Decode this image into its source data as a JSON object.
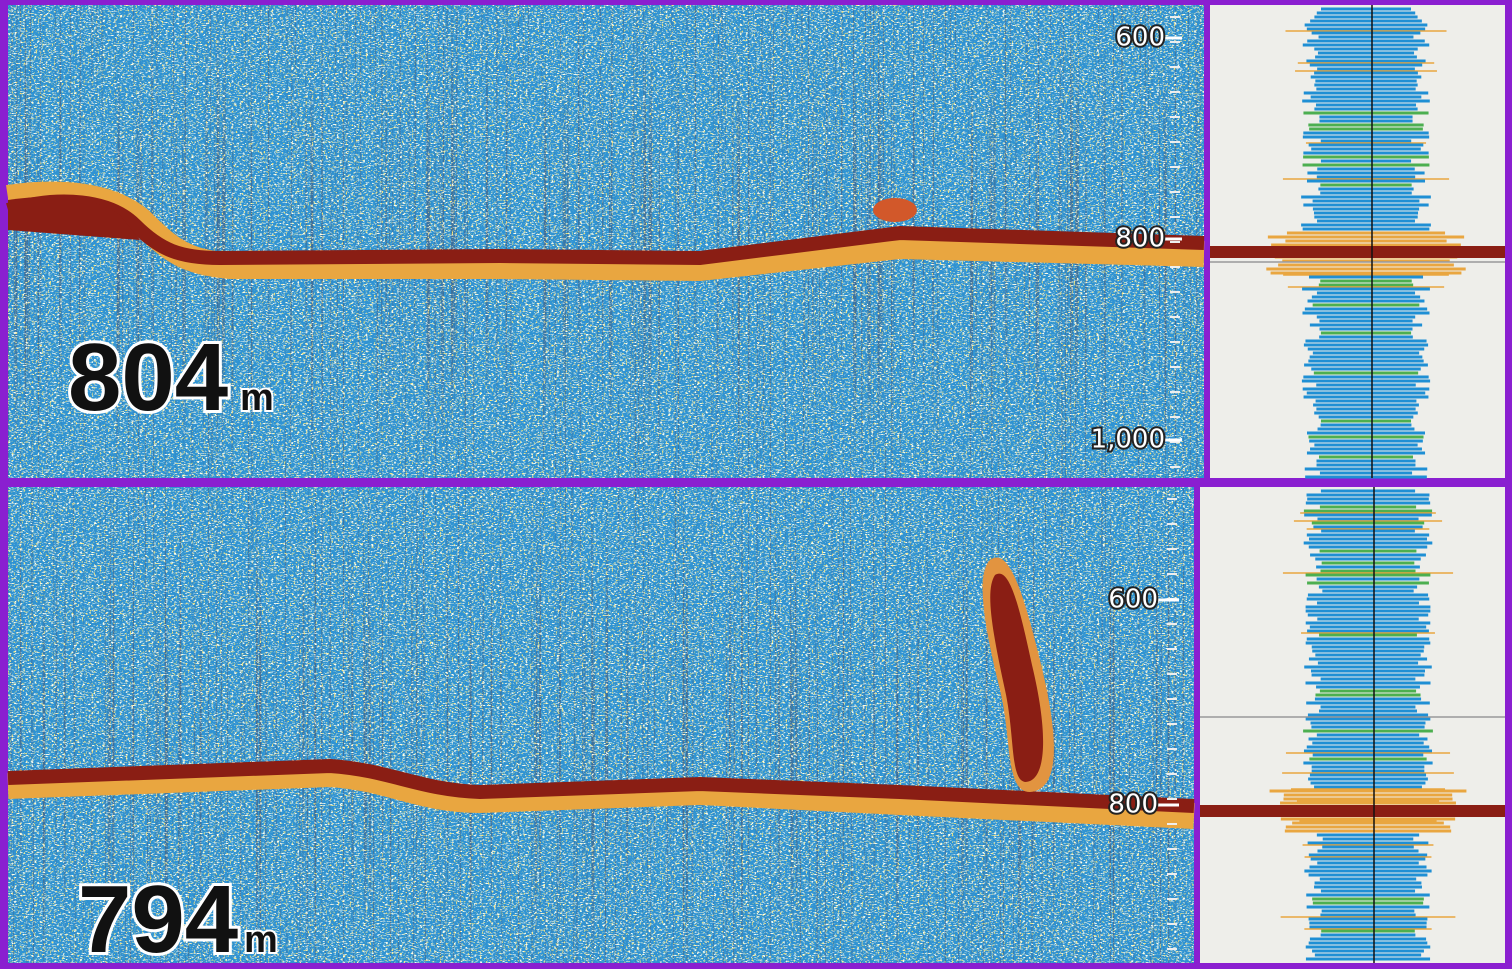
{
  "panels": [
    {
      "depth": "804",
      "unit": "m",
      "scale": [
        "600",
        "800",
        "1,000"
      ]
    },
    {
      "depth": "794",
      "unit": "m",
      "scale": [
        "600",
        "800"
      ]
    }
  ]
}
